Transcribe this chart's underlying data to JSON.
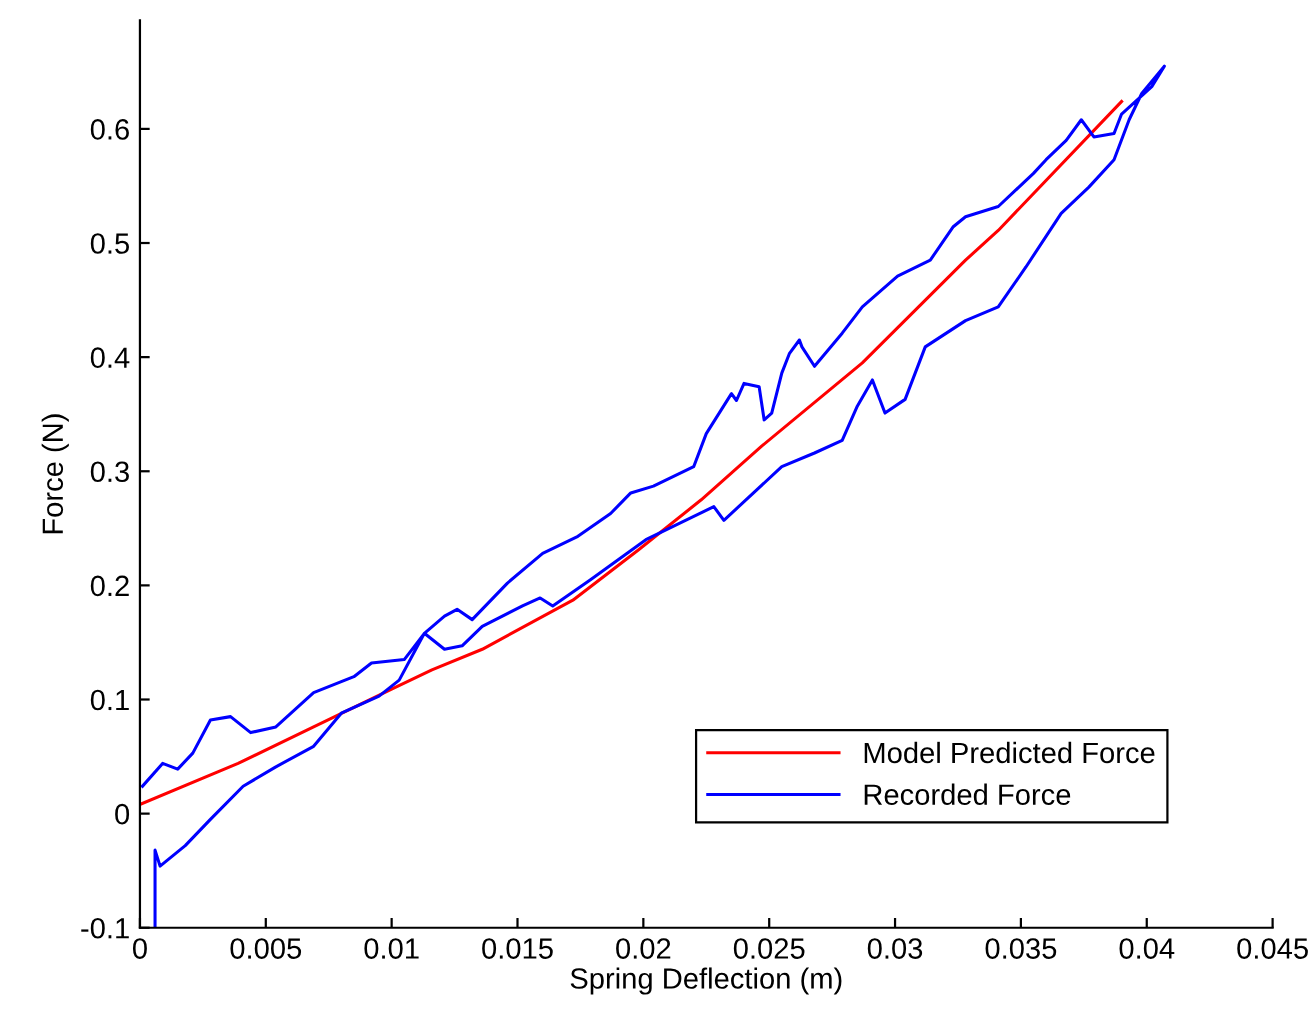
{
  "chart_data": {
    "type": "line",
    "xlabel": "Spring Deflection (m)",
    "ylabel": "Force (N)",
    "xlim": [
      0,
      0.045
    ],
    "xticks": [
      0,
      0.005,
      0.01,
      0.015,
      0.02,
      0.025,
      0.03,
      0.035,
      0.04,
      0.045
    ],
    "ylim": [
      -0.1,
      0.695
    ],
    "yticks": [
      {
        "value": -0.1,
        "label": "-0.1"
      },
      0,
      0.1,
      0.2,
      0.3,
      0.4,
      0.5,
      0.6
    ],
    "grid": false,
    "legend": "bottom right",
    "marker": "none",
    "line_style": "solid",
    "series": [
      {
        "name": "Model Predicted Force",
        "color": "#ff0000",
        "x": [
          0,
          0.0039,
          0.0069,
          0.01,
          0.0116,
          0.0136,
          0.0172,
          0.0198,
          0.0223,
          0.0247,
          0.0287,
          0.0328,
          0.0341,
          0.039
        ],
        "values": [
          0.008,
          0.044,
          0.076,
          0.109,
          0.126,
          0.144,
          0.187,
          0.231,
          0.275,
          0.322,
          0.395,
          0.485,
          0.511,
          0.624
        ]
      },
      {
        "name": "Recorded Force",
        "color": "#0000ff",
        "x": [
          0.0006,
          0.0006,
          0.0008,
          0.0018,
          0.0028,
          0.0041,
          0.0054,
          0.0069,
          0.008,
          0.0095,
          0.0103,
          0.0113,
          0.0121,
          0.0128,
          0.0136,
          0.0152,
          0.0159,
          0.0164,
          0.0179,
          0.0201,
          0.0228,
          0.0232,
          0.0255,
          0.0268,
          0.0279,
          0.0285,
          0.0291,
          0.0296,
          0.0304,
          0.0312,
          0.0328,
          0.0341,
          0.0352,
          0.0366,
          0.0377,
          0.0387,
          0.0393,
          0.0398,
          0.0407,
          0.0402,
          0.039,
          0.0387,
          0.0379,
          0.0374,
          0.0368,
          0.036,
          0.0355,
          0.0341,
          0.0328,
          0.0323,
          0.0314,
          0.0301,
          0.0287,
          0.0279,
          0.0268,
          0.0263,
          0.0262,
          0.0258,
          0.0255,
          0.0251,
          0.0248,
          0.0246,
          0.024,
          0.0237,
          0.0235,
          0.0225,
          0.022,
          0.0204,
          0.0195,
          0.0187,
          0.0174,
          0.016,
          0.0146,
          0.0132,
          0.0126,
          0.0121,
          0.0113,
          0.0105,
          0.0092,
          0.0085,
          0.0069,
          0.0054,
          0.0044,
          0.0036,
          0.0028,
          0.0021,
          0.0015,
          0.0009,
          0.0001
        ],
        "values": [
          -0.1,
          -0.032,
          -0.046,
          -0.028,
          -0.005,
          0.024,
          0.041,
          0.059,
          0.088,
          0.103,
          0.117,
          0.158,
          0.144,
          0.147,
          0.164,
          0.182,
          0.189,
          0.182,
          0.205,
          0.24,
          0.269,
          0.257,
          0.304,
          0.316,
          0.327,
          0.357,
          0.38,
          0.351,
          0.363,
          0.409,
          0.432,
          0.444,
          0.479,
          0.526,
          0.549,
          0.573,
          0.608,
          0.631,
          0.655,
          0.637,
          0.613,
          0.596,
          0.593,
          0.608,
          0.59,
          0.573,
          0.561,
          0.532,
          0.523,
          0.514,
          0.485,
          0.471,
          0.444,
          0.421,
          0.392,
          0.409,
          0.415,
          0.403,
          0.386,
          0.351,
          0.345,
          0.374,
          0.377,
          0.362,
          0.368,
          0.333,
          0.304,
          0.287,
          0.281,
          0.263,
          0.243,
          0.228,
          0.202,
          0.17,
          0.179,
          0.173,
          0.158,
          0.135,
          0.132,
          0.12,
          0.106,
          0.076,
          0.071,
          0.085,
          0.082,
          0.053,
          0.039,
          0.044,
          0.024
        ]
      }
    ]
  }
}
